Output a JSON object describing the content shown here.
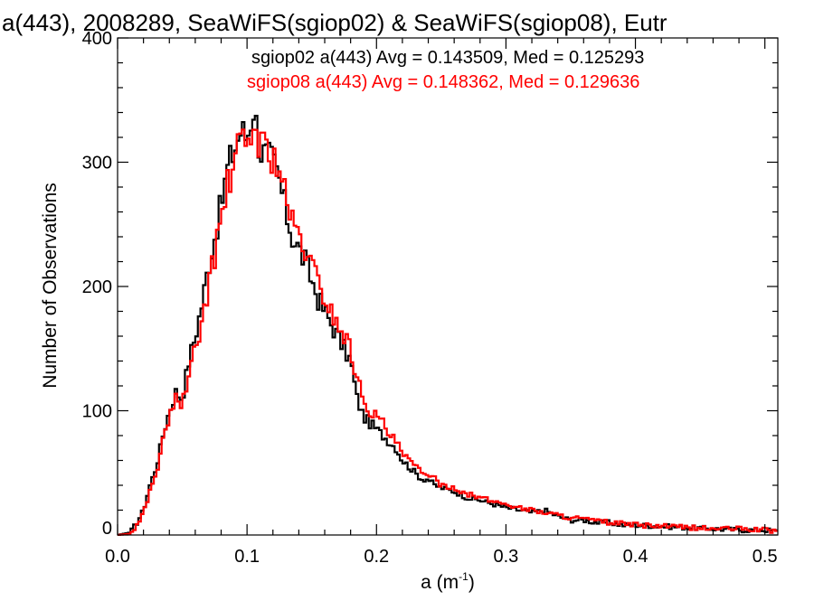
{
  "chart_data": {
    "type": "line",
    "title": "a(443), 2008289, SeaWiFS(sgiop02) & SeaWiFS(sgiop08), Eutr",
    "xlabel_main": "a (m",
    "xlabel_sup": "-1",
    "xlabel_close": ")",
    "ylabel": "Number of Observations",
    "xlim": [
      0.0,
      0.51
    ],
    "ylim": [
      0,
      400
    ],
    "x_ticks": [
      "0.0",
      "0.1",
      "0.2",
      "0.3",
      "0.4",
      "0.5"
    ],
    "y_ticks": [
      "0",
      "100",
      "200",
      "300",
      "400"
    ],
    "grid": false,
    "step": "histogram",
    "annotations": [
      "sgiop02 a(443) Avg = 0.143509, Med = 0.125293",
      "sgiop08 a(443) Avg = 0.148362, Med = 0.129636"
    ],
    "series": [
      {
        "color": "#000000",
        "x": [
          0.0,
          0.01,
          0.015,
          0.02,
          0.025,
          0.03,
          0.035,
          0.04,
          0.045,
          0.05,
          0.055,
          0.06,
          0.065,
          0.07,
          0.075,
          0.08,
          0.085,
          0.09,
          0.095,
          0.1,
          0.105,
          0.11,
          0.115,
          0.12,
          0.125,
          0.13,
          0.135,
          0.14,
          0.145,
          0.15,
          0.155,
          0.16,
          0.165,
          0.17,
          0.175,
          0.18,
          0.185,
          0.19,
          0.195,
          0.2,
          0.205,
          0.21,
          0.215,
          0.22,
          0.225,
          0.23,
          0.235,
          0.24,
          0.245,
          0.25,
          0.26,
          0.27,
          0.28,
          0.29,
          0.3,
          0.31,
          0.32,
          0.33,
          0.34,
          0.35,
          0.36,
          0.37,
          0.38,
          0.39,
          0.4,
          0.42,
          0.44,
          0.46,
          0.48,
          0.5,
          0.51
        ],
        "y": [
          0,
          2,
          10,
          20,
          40,
          55,
          80,
          100,
          115,
          110,
          140,
          160,
          185,
          215,
          240,
          265,
          295,
          310,
          325,
          320,
          345,
          310,
          305,
          300,
          285,
          260,
          240,
          230,
          220,
          205,
          190,
          180,
          170,
          160,
          150,
          140,
          110,
          95,
          90,
          85,
          80,
          75,
          70,
          60,
          55,
          50,
          45,
          45,
          40,
          38,
          35,
          30,
          28,
          25,
          22,
          20,
          18,
          20,
          15,
          12,
          12,
          10,
          10,
          8,
          8,
          7,
          6,
          5,
          4,
          4,
          3
        ]
      },
      {
        "color": "#ff0000",
        "x": [
          0.0,
          0.01,
          0.015,
          0.02,
          0.025,
          0.03,
          0.035,
          0.04,
          0.045,
          0.05,
          0.055,
          0.06,
          0.065,
          0.07,
          0.075,
          0.08,
          0.085,
          0.09,
          0.095,
          0.1,
          0.105,
          0.11,
          0.115,
          0.12,
          0.125,
          0.13,
          0.135,
          0.14,
          0.145,
          0.15,
          0.155,
          0.16,
          0.165,
          0.17,
          0.175,
          0.18,
          0.185,
          0.19,
          0.195,
          0.2,
          0.205,
          0.21,
          0.215,
          0.22,
          0.225,
          0.23,
          0.235,
          0.24,
          0.245,
          0.25,
          0.26,
          0.27,
          0.28,
          0.29,
          0.3,
          0.31,
          0.32,
          0.33,
          0.34,
          0.35,
          0.36,
          0.37,
          0.38,
          0.39,
          0.4,
          0.42,
          0.44,
          0.46,
          0.48,
          0.5,
          0.51
        ],
        "y": [
          0,
          1,
          8,
          18,
          35,
          50,
          75,
          95,
          110,
          105,
          125,
          150,
          170,
          200,
          225,
          255,
          280,
          300,
          315,
          310,
          330,
          315,
          310,
          305,
          295,
          270,
          250,
          240,
          230,
          215,
          205,
          190,
          180,
          170,
          160,
          150,
          125,
          110,
          100,
          95,
          90,
          80,
          75,
          65,
          60,
          55,
          50,
          50,
          45,
          40,
          38,
          33,
          30,
          27,
          25,
          22,
          20,
          18,
          16,
          14,
          13,
          11,
          10,
          9,
          8,
          7,
          6,
          5,
          5,
          4,
          3
        ]
      }
    ]
  }
}
